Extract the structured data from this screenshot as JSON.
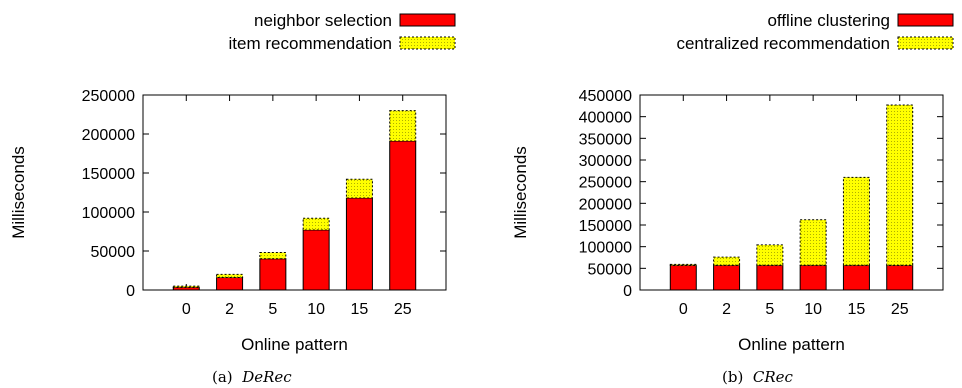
{
  "chart_data": [
    {
      "type": "bar",
      "stacked": true,
      "categories": [
        "0",
        "2",
        "5",
        "10",
        "15",
        "25"
      ],
      "series": [
        {
          "name": "neighbor selection",
          "color": "#ff0000",
          "values": [
            3500,
            16000,
            40000,
            77000,
            118000,
            191000
          ]
        },
        {
          "name": "item recommendation",
          "color": "#ffff00",
          "values": [
            1500,
            4000,
            8000,
            15000,
            24000,
            39000
          ]
        }
      ],
      "xlabel": "Online pattern",
      "ylabel": "Milliseconds",
      "ylim": [
        0,
        250000
      ],
      "yticks": [
        0,
        50000,
        100000,
        150000,
        200000,
        250000
      ],
      "legend": "top-right",
      "caption_prefix": "(a)",
      "caption_name": "DeRec"
    },
    {
      "type": "bar",
      "stacked": true,
      "categories": [
        "0",
        "2",
        "5",
        "10",
        "15",
        "25"
      ],
      "series": [
        {
          "name": "offline clustering",
          "color": "#ff0000",
          "values": [
            57000,
            57000,
            57000,
            57000,
            57000,
            57000
          ]
        },
        {
          "name": "centralized recommendation",
          "color": "#ffff00",
          "values": [
            2000,
            19000,
            47000,
            105000,
            203000,
            370000
          ]
        }
      ],
      "xlabel": "Online pattern",
      "ylabel": "Milliseconds",
      "ylim": [
        0,
        450000
      ],
      "yticks": [
        0,
        50000,
        100000,
        150000,
        200000,
        250000,
        300000,
        350000,
        400000,
        450000
      ],
      "legend": "top-right",
      "caption_prefix": "(b)",
      "caption_name": "CRec"
    }
  ]
}
